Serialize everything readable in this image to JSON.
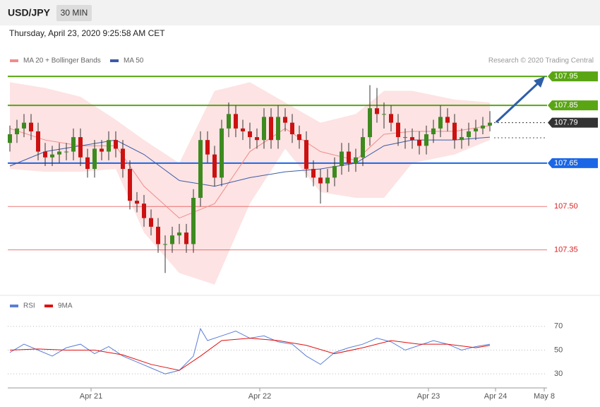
{
  "chart_data": [
    {
      "type": "candlestick",
      "title": "USD/JPY",
      "timeframe": "30 MIN",
      "subtitle": "Thursday, April 23, 2020 9:25:58 AM CET",
      "credit": "Research © 2020 Trading Central",
      "xlim": [
        -0.3,
        76.1
      ],
      "ylim": [
        107.2,
        107.97
      ],
      "up_color": "#3d8a1f",
      "down_color": "#cc1111",
      "x": [
        0,
        1,
        2,
        3,
        4,
        5,
        6,
        7,
        8,
        9,
        10,
        11,
        12,
        13,
        14,
        15,
        16,
        17,
        18,
        19,
        20,
        21,
        22,
        23,
        24,
        25,
        26,
        27,
        28,
        29,
        30,
        31,
        32,
        33,
        34,
        35,
        36,
        37,
        38,
        39,
        40,
        41,
        42,
        43,
        44,
        45,
        46,
        47,
        48,
        49,
        50,
        51,
        52,
        53,
        54,
        55,
        56,
        57,
        58,
        59,
        60,
        61,
        62,
        63,
        64,
        65,
        66,
        67,
        68
      ],
      "open": [
        107.72,
        107.75,
        107.77,
        107.79,
        107.76,
        107.69,
        107.67,
        107.68,
        107.69,
        107.69,
        107.74,
        107.67,
        107.63,
        107.7,
        107.69,
        107.73,
        107.7,
        107.63,
        107.52,
        107.51,
        107.46,
        107.43,
        107.37,
        107.37,
        107.4,
        107.41,
        107.37,
        107.53,
        107.73,
        107.68,
        107.6,
        107.77,
        107.82,
        107.77,
        107.76,
        107.74,
        107.73,
        107.81,
        107.73,
        107.81,
        107.79,
        107.75,
        107.73,
        107.63,
        107.6,
        107.58,
        107.6,
        107.64,
        107.69,
        107.65,
        107.67,
        107.74,
        107.84,
        107.82,
        107.82,
        107.79,
        107.74,
        107.74,
        107.73,
        107.71,
        107.75,
        107.77,
        107.81,
        107.79,
        107.73,
        107.74,
        107.76,
        107.77,
        107.78
      ],
      "high": [
        107.78,
        107.8,
        107.82,
        107.82,
        107.79,
        107.72,
        107.71,
        107.72,
        107.72,
        107.77,
        107.77,
        107.7,
        107.73,
        107.73,
        107.76,
        107.76,
        107.73,
        107.66,
        107.55,
        107.54,
        107.49,
        107.46,
        107.4,
        107.43,
        107.44,
        107.44,
        107.56,
        107.76,
        107.76,
        107.71,
        107.8,
        107.86,
        107.85,
        107.8,
        107.79,
        107.77,
        107.84,
        107.84,
        107.85,
        107.84,
        107.82,
        107.78,
        107.76,
        107.66,
        107.63,
        107.63,
        107.67,
        107.72,
        107.72,
        107.7,
        107.77,
        107.92,
        107.91,
        107.86,
        107.85,
        107.82,
        107.77,
        107.77,
        107.76,
        107.78,
        107.8,
        107.85,
        107.84,
        107.82,
        107.77,
        107.79,
        107.8,
        107.81,
        107.83
      ],
      "low": [
        107.69,
        107.72,
        107.74,
        107.73,
        107.66,
        107.64,
        107.64,
        107.65,
        107.66,
        107.66,
        107.64,
        107.6,
        107.6,
        107.66,
        107.66,
        107.67,
        107.6,
        107.49,
        107.48,
        107.43,
        107.4,
        107.34,
        107.27,
        107.34,
        107.37,
        107.34,
        107.34,
        107.5,
        107.65,
        107.57,
        107.57,
        107.74,
        107.74,
        107.73,
        107.7,
        107.7,
        107.7,
        107.7,
        107.7,
        107.76,
        107.72,
        107.7,
        107.6,
        107.57,
        107.51,
        107.55,
        107.57,
        107.61,
        107.62,
        107.62,
        107.64,
        107.71,
        107.79,
        107.77,
        107.76,
        107.71,
        107.7,
        107.7,
        107.68,
        107.68,
        107.72,
        107.74,
        107.76,
        107.7,
        107.7,
        107.71,
        107.73,
        107.75,
        107.76
      ],
      "close": [
        107.75,
        107.77,
        107.79,
        107.76,
        107.69,
        107.67,
        107.68,
        107.69,
        107.69,
        107.74,
        107.67,
        107.63,
        107.7,
        107.69,
        107.73,
        107.7,
        107.63,
        107.52,
        107.51,
        107.46,
        107.43,
        107.37,
        107.37,
        107.4,
        107.41,
        107.37,
        107.53,
        107.73,
        107.68,
        107.6,
        107.77,
        107.82,
        107.77,
        107.76,
        107.74,
        107.73,
        107.81,
        107.73,
        107.81,
        107.79,
        107.75,
        107.73,
        107.63,
        107.6,
        107.58,
        107.6,
        107.64,
        107.69,
        107.65,
        107.67,
        107.74,
        107.84,
        107.82,
        107.82,
        107.79,
        107.74,
        107.74,
        107.73,
        107.71,
        107.75,
        107.77,
        107.81,
        107.79,
        107.73,
        107.74,
        107.76,
        107.77,
        107.78,
        107.79
      ],
      "series": [
        {
          "name": "MA 20 + Bollinger Bands",
          "color": "#f08c8c",
          "band_color": "#fde3e3",
          "x": [
            0,
            5,
            10,
            15,
            19,
            24,
            29,
            34,
            39,
            44,
            49,
            53,
            57,
            63,
            68
          ],
          "values": [
            107.77,
            107.73,
            107.71,
            107.71,
            107.57,
            107.46,
            107.51,
            107.69,
            107.77,
            107.69,
            107.66,
            107.75,
            107.76,
            107.76,
            107.78
          ],
          "upper": [
            107.93,
            107.91,
            107.88,
            107.8,
            107.73,
            107.65,
            107.9,
            107.93,
            107.86,
            107.79,
            107.82,
            107.9,
            107.9,
            107.87,
            107.86
          ],
          "lower": [
            107.63,
            107.62,
            107.62,
            107.63,
            107.41,
            107.27,
            107.23,
            107.51,
            107.7,
            107.55,
            107.53,
            107.53,
            107.65,
            107.68,
            107.73
          ]
        },
        {
          "name": "MA 50",
          "color": "#3a5ba8",
          "x": [
            0,
            5,
            10,
            15,
            19,
            24,
            29,
            34,
            39,
            44,
            49,
            53,
            57,
            63,
            68
          ],
          "values": [
            107.64,
            107.69,
            107.71,
            107.73,
            107.68,
            107.59,
            107.57,
            107.6,
            107.62,
            107.63,
            107.65,
            107.71,
            107.73,
            107.73,
            107.74
          ]
        }
      ],
      "levels": [
        {
          "value": 107.95,
          "label": "107.95",
          "color": "#5aa514",
          "style": "box"
        },
        {
          "value": 107.85,
          "label": "107.85",
          "color": "#5aa514",
          "style": "box"
        },
        {
          "value": 107.79,
          "label": "107.79",
          "color": "#333333",
          "style": "current"
        },
        {
          "value": 107.65,
          "label": "107.65",
          "color": "#1a66e6",
          "style": "box"
        },
        {
          "value": 107.5,
          "label": "107.50",
          "color": "#dd2222",
          "style": "text"
        },
        {
          "value": 107.35,
          "label": "107.35",
          "color": "#dd2222",
          "style": "text"
        }
      ]
    },
    {
      "type": "line",
      "xlim": [
        -0.3,
        76.1
      ],
      "ylim": [
        20,
        80
      ],
      "yticks": [
        30,
        50,
        70
      ],
      "xticks": [
        {
          "value": 11.5,
          "label": "Apr 21"
        },
        {
          "value": 35.4,
          "label": "Apr 22"
        },
        {
          "value": 59.3,
          "label": "Apr 23"
        },
        {
          "value": 68.8,
          "label": "Apr 24"
        },
        {
          "value": 75.7,
          "label": "May 8"
        }
      ],
      "series": [
        {
          "name": "RSI",
          "color": "#5b7fd6",
          "x": [
            0,
            2,
            4,
            6,
            8,
            10,
            12,
            14,
            16,
            18,
            20,
            22,
            24,
            26,
            27,
            28,
            30,
            32,
            34,
            36,
            38,
            40,
            42,
            44,
            46,
            48,
            50,
            52,
            54,
            56,
            58,
            60,
            62,
            64,
            66,
            68
          ],
          "values": [
            48,
            55,
            50,
            45,
            52,
            55,
            47,
            53,
            45,
            40,
            35,
            30,
            33,
            45,
            68,
            58,
            62,
            66,
            60,
            62,
            57,
            55,
            45,
            38,
            48,
            52,
            55,
            60,
            57,
            50,
            54,
            58,
            55,
            50,
            53,
            55
          ]
        },
        {
          "name": "9MA",
          "color": "#e01010",
          "x": [
            0,
            4,
            8,
            12,
            16,
            20,
            24,
            27,
            30,
            34,
            38,
            42,
            46,
            50,
            54,
            58,
            62,
            66,
            68
          ],
          "values": [
            50,
            51,
            50,
            50,
            46,
            38,
            33,
            45,
            58,
            60,
            58,
            54,
            47,
            52,
            58,
            55,
            55,
            52,
            54
          ]
        }
      ]
    }
  ]
}
